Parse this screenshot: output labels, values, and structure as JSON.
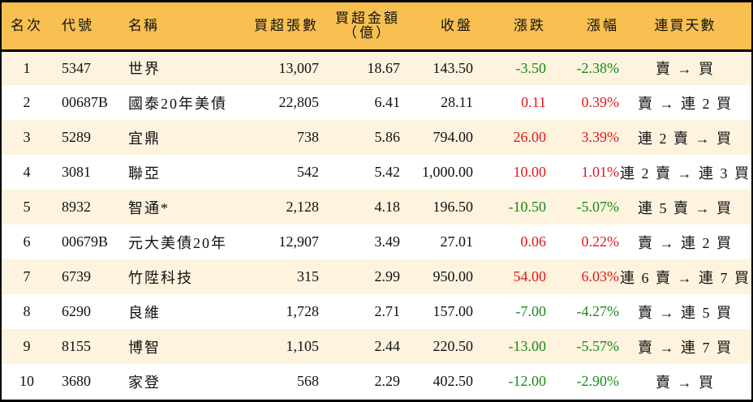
{
  "table": {
    "headers": {
      "rank": "名次",
      "code": "代號",
      "name": "名稱",
      "net_buy_lots": "買超張數",
      "net_buy_amount_line1": "買超金額",
      "net_buy_amount_line2": "（億）",
      "close": "收盤",
      "change": "漲跌",
      "change_pct": "漲幅",
      "streak": "連買天數"
    },
    "colors": {
      "header_bg": "#F8C050",
      "row_odd_bg": "#FDF3DE",
      "row_even_bg": "#FFFFFF",
      "up": "#E8141B",
      "down": "#1A8A1A"
    },
    "rows": [
      {
        "rank": "1",
        "code": "5347",
        "name": "世界",
        "lots": "13,007",
        "amount": "18.67",
        "close": "143.50",
        "change": "-3.50",
        "pct": "-2.38%",
        "direction": "down",
        "streak": "賣 → 買"
      },
      {
        "rank": "2",
        "code": "00687B",
        "name": "國泰20年美債",
        "lots": "22,805",
        "amount": "6.41",
        "close": "28.11",
        "change": "0.11",
        "pct": "0.39%",
        "direction": "up",
        "streak": "賣 → 連 2 買"
      },
      {
        "rank": "3",
        "code": "5289",
        "name": "宜鼎",
        "lots": "738",
        "amount": "5.86",
        "close": "794.00",
        "change": "26.00",
        "pct": "3.39%",
        "direction": "up",
        "streak": "連 2 賣 → 買"
      },
      {
        "rank": "4",
        "code": "3081",
        "name": "聯亞",
        "lots": "542",
        "amount": "5.42",
        "close": "1,000.00",
        "change": "10.00",
        "pct": "1.01%",
        "direction": "up",
        "streak": "連 2 賣 → 連 3 買"
      },
      {
        "rank": "5",
        "code": "8932",
        "name": "智通*",
        "lots": "2,128",
        "amount": "4.18",
        "close": "196.50",
        "change": "-10.50",
        "pct": "-5.07%",
        "direction": "down",
        "streak": "連 5 賣 → 買"
      },
      {
        "rank": "6",
        "code": "00679B",
        "name": "元大美債20年",
        "lots": "12,907",
        "amount": "3.49",
        "close": "27.01",
        "change": "0.06",
        "pct": "0.22%",
        "direction": "up",
        "streak": "賣 → 連 2 買"
      },
      {
        "rank": "7",
        "code": "6739",
        "name": "竹陞科技",
        "lots": "315",
        "amount": "2.99",
        "close": "950.00",
        "change": "54.00",
        "pct": "6.03%",
        "direction": "up",
        "streak": "連 6 賣 → 連 7 買"
      },
      {
        "rank": "8",
        "code": "6290",
        "name": "良維",
        "lots": "1,728",
        "amount": "2.71",
        "close": "157.00",
        "change": "-7.00",
        "pct": "-4.27%",
        "direction": "down",
        "streak": "賣 → 連 5 買"
      },
      {
        "rank": "9",
        "code": "8155",
        "name": "博智",
        "lots": "1,105",
        "amount": "2.44",
        "close": "220.50",
        "change": "-13.00",
        "pct": "-5.57%",
        "direction": "down",
        "streak": "賣 → 連 7 買"
      },
      {
        "rank": "10",
        "code": "3680",
        "name": "家登",
        "lots": "568",
        "amount": "2.29",
        "close": "402.50",
        "change": "-12.00",
        "pct": "-2.90%",
        "direction": "down",
        "streak": "賣 → 買"
      }
    ]
  }
}
